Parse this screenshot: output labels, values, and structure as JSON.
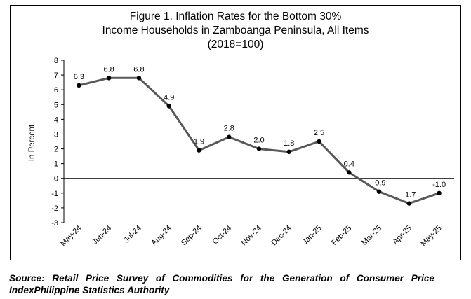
{
  "chart_data": {
    "type": "line",
    "title_lines": [
      "Figure 1. Inflation Rates for the Bottom 30%",
      "Income Households in Zamboanga Peninsula, All Items",
      "(2018=100)"
    ],
    "ylabel": "In Percent",
    "xlabel": "",
    "categories": [
      "May-24",
      "Jun-24",
      "Jul-24",
      "Aug-24",
      "Sep-24",
      "Oct-24",
      "Nov-24",
      "Dec-24",
      "Jan-25",
      "Feb-25",
      "Mar-25",
      "Apr-25",
      "May-25"
    ],
    "values": [
      6.3,
      6.8,
      6.8,
      4.9,
      1.9,
      2.8,
      2.0,
      1.8,
      2.5,
      0.4,
      -0.9,
      -1.7,
      -1.0
    ],
    "value_labels": [
      "6.3",
      "6.8",
      "6.8",
      "4.9",
      "1.9",
      "2.8",
      "2.0",
      "1.8",
      "2.5",
      "0.4",
      "-0.9",
      "-1.7",
      "-1.0"
    ],
    "y_ticks": [
      8,
      7,
      6,
      5,
      4,
      3,
      2,
      1,
      0,
      -1,
      -2,
      -3
    ],
    "ylim": [
      -3,
      8
    ],
    "grid": false,
    "legend": "none",
    "line_color": "#595959",
    "marker_color": "#000000"
  },
  "source_note": "Source: Retail Price Survey of Commodities for the Generation of Consumer Price IndexPhilippine Statistics Authority"
}
